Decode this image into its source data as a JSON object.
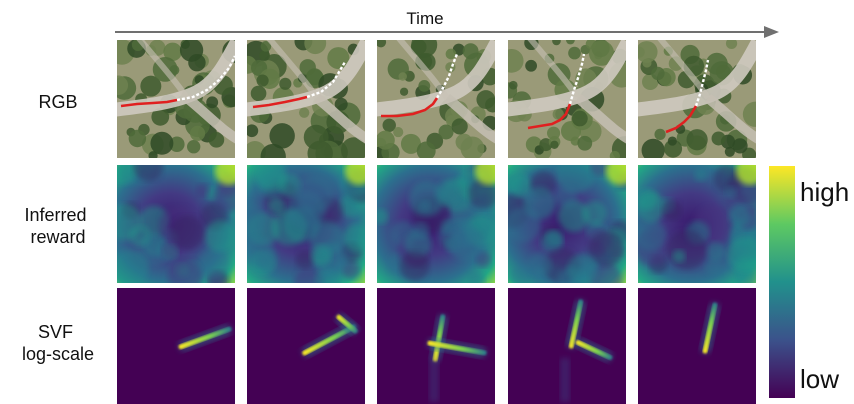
{
  "time_label": "Time",
  "row_labels": {
    "rgb": "RGB",
    "reward": [
      "Inferred",
      "reward"
    ],
    "svf": [
      "SVF",
      "log-scale"
    ]
  },
  "colorbar": {
    "high": "high",
    "low": "low"
  },
  "frames": 5,
  "colors": {
    "viridis_low": "#440154",
    "viridis_mid": "#21918c",
    "viridis_high": "#fde725",
    "path_past": "#e02020",
    "path_future": "#ffffff",
    "arrow": "#707070"
  }
}
